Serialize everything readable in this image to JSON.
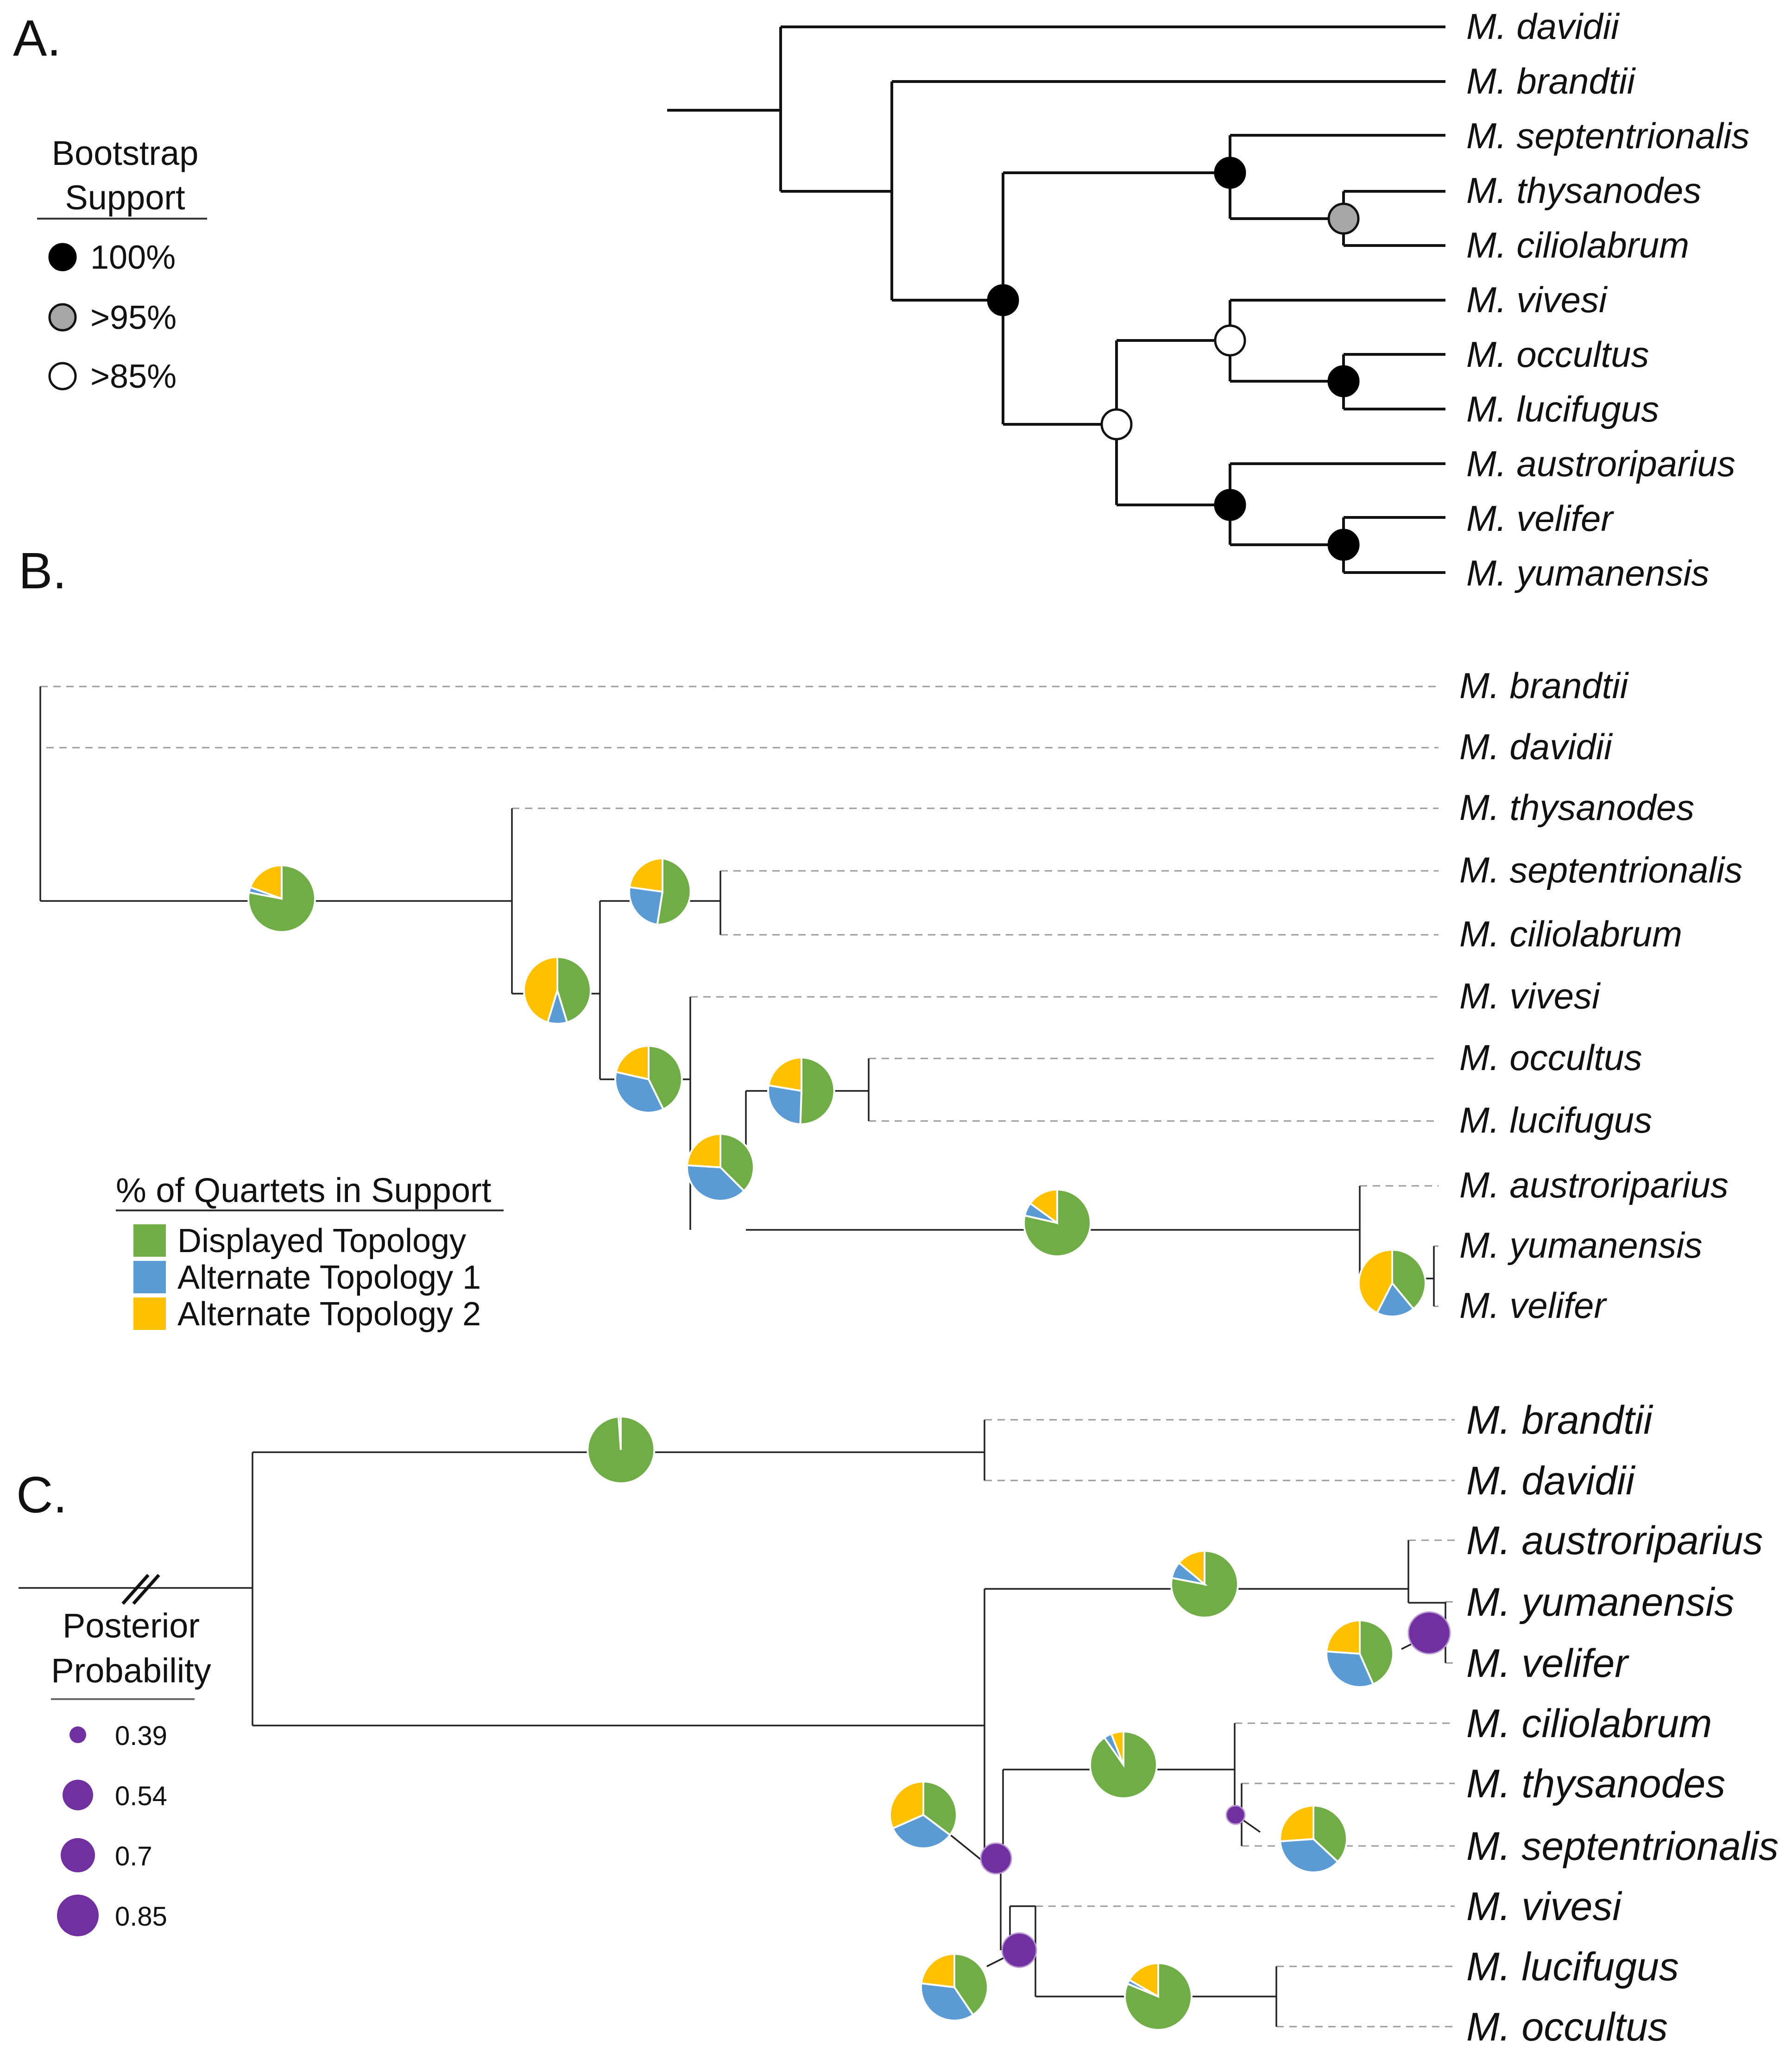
{
  "panels": {
    "a": {
      "label": "A.",
      "taxa": [
        "M. davidii",
        "M. brandtii",
        "M. septentrionalis",
        "M. thysanodes",
        "M. ciliolabrum",
        "M. vivesi",
        "M. occultus",
        "M. lucifugus",
        "M. austroriparius",
        "M. velifer",
        "M. yumanensis"
      ],
      "legend": {
        "title_line1": "Bootstrap",
        "title_line2": "Support",
        "items": [
          {
            "label": "100%",
            "color": "#000000"
          },
          {
            "label": ">95%",
            "color": "#a6a6a6"
          },
          {
            "label": ">85%",
            "color": "#ffffff"
          }
        ]
      }
    },
    "b": {
      "label": "B.",
      "taxa": [
        "M. brandtii",
        "M. davidii",
        "M. thysanodes",
        "M. septentrionalis",
        "M. ciliolabrum",
        "M. vivesi",
        "M. occultus",
        "M. lucifugus",
        "M. austroriparius",
        "M. yumanensis",
        "M. velifer"
      ],
      "legend": {
        "title": "% of Quartets in Support",
        "items": [
          {
            "label": "Displayed Topology",
            "color": "#70ad47"
          },
          {
            "label": "Alternate Topology 1",
            "color": "#5b9bd5"
          },
          {
            "label": "Alternate Topology 2",
            "color": "#ffc000"
          }
        ]
      }
    },
    "c": {
      "label": "C.",
      "taxa": [
        "M. brandtii",
        "M. davidii",
        "M. austroriparius",
        "M. yumanensis",
        "M. velifer",
        "M. ciliolabrum",
        "M. thysanodes",
        "M. septentrionalis",
        "M. vivesi",
        "M. lucifugus",
        "M. occultus"
      ],
      "legend": {
        "title_line1": "Posterior",
        "title_line2": "Probability",
        "items": [
          "0.39",
          "0.54",
          "0.7",
          "0.85"
        ]
      }
    }
  },
  "colors": {
    "displayed": "#70ad47",
    "alt1": "#5b9bd5",
    "alt2": "#ffc000",
    "posterior": "#7030a0"
  }
}
